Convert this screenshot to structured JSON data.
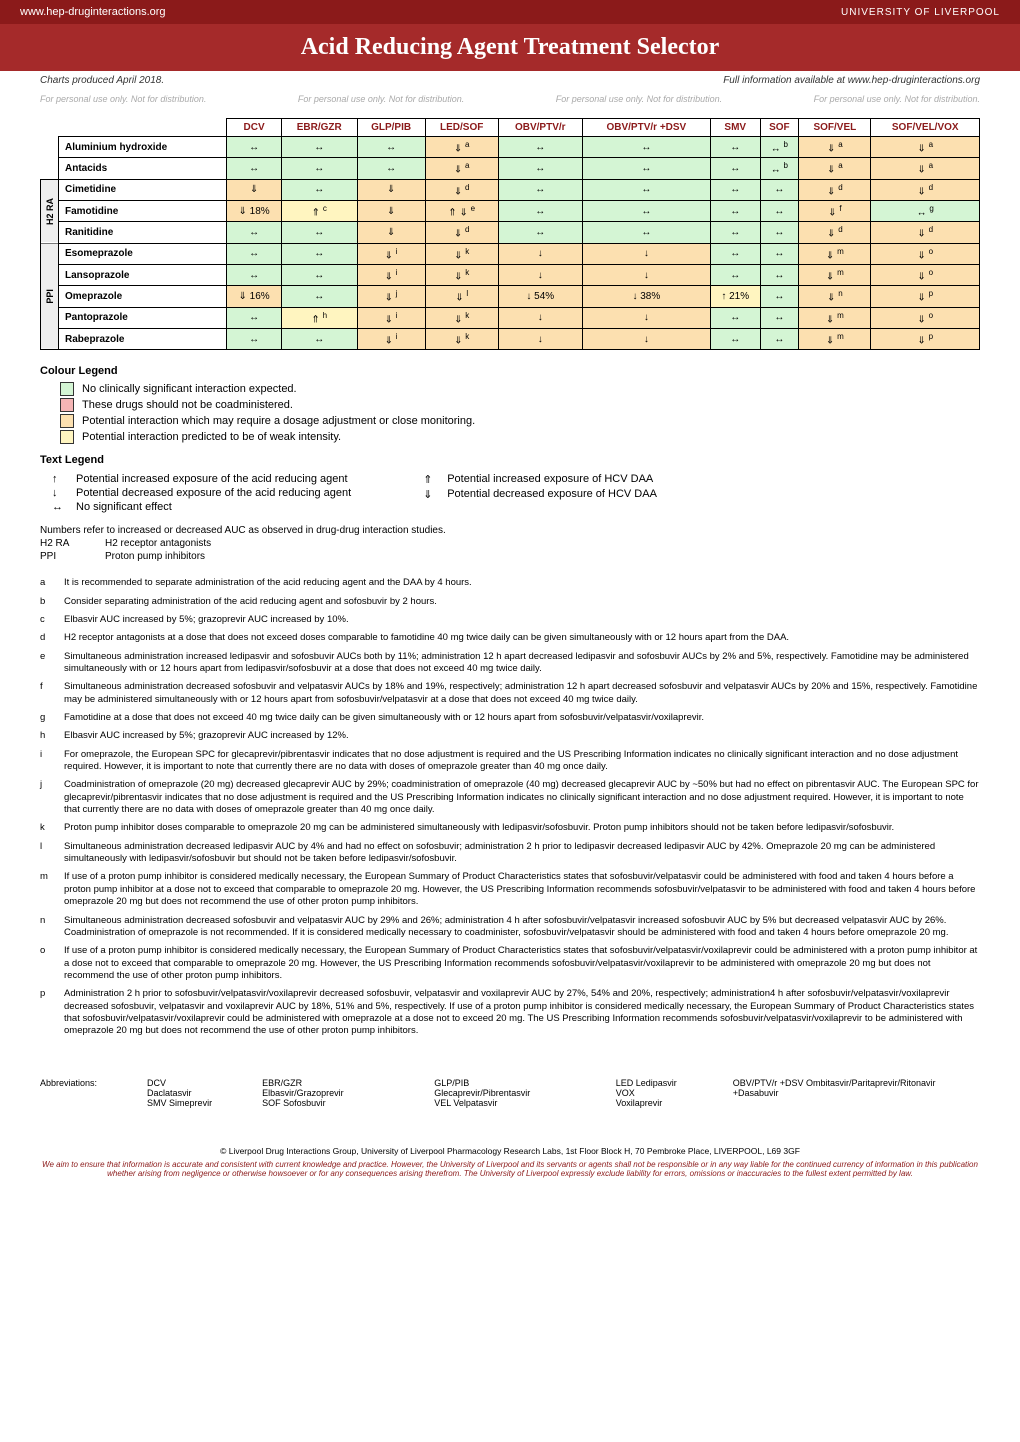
{
  "header": {
    "url": "www.hep-druginteractions.org",
    "logo": "UNIVERSITY OF LIVERPOOL"
  },
  "title": "Acid Reducing Agent Treatment Selector",
  "date_note": "Charts produced April 2018.",
  "info_note": "Full information available at www.hep-druginteractions.org",
  "watermark": "For personal use only. Not for distribution.",
  "colors": {
    "green": "#d4f5d4",
    "red": "#f5b5b5",
    "amber": "#fce0b0",
    "yellow": "#fff5c0"
  },
  "columns": [
    "DCV",
    "EBR/GZR",
    "GLP/PIB",
    "LED/SOF",
    "OBV/PTV/r",
    "OBV/PTV/r +DSV",
    "SMV",
    "SOF",
    "SOF/VEL",
    "SOF/VEL/VOX"
  ],
  "groups": [
    {
      "label": "",
      "rows": [
        {
          "name": "Aluminium hydroxide",
          "cells": [
            {
              "c": "green",
              "s": "↔"
            },
            {
              "c": "green",
              "s": "↔"
            },
            {
              "c": "green",
              "s": "↔"
            },
            {
              "c": "amber",
              "s": "⇓",
              "n": "a"
            },
            {
              "c": "green",
              "s": "↔"
            },
            {
              "c": "green",
              "s": "↔"
            },
            {
              "c": "green",
              "s": "↔"
            },
            {
              "c": "green",
              "s": "↔",
              "n": "b"
            },
            {
              "c": "amber",
              "s": "⇓",
              "n": "a"
            },
            {
              "c": "amber",
              "s": "⇓",
              "n": "a"
            }
          ]
        },
        {
          "name": "Antacids",
          "cells": [
            {
              "c": "green",
              "s": "↔"
            },
            {
              "c": "green",
              "s": "↔"
            },
            {
              "c": "green",
              "s": "↔"
            },
            {
              "c": "amber",
              "s": "⇓",
              "n": "a"
            },
            {
              "c": "green",
              "s": "↔"
            },
            {
              "c": "green",
              "s": "↔"
            },
            {
              "c": "green",
              "s": "↔"
            },
            {
              "c": "green",
              "s": "↔",
              "n": "b"
            },
            {
              "c": "amber",
              "s": "⇓",
              "n": "a"
            },
            {
              "c": "amber",
              "s": "⇓",
              "n": "a"
            }
          ]
        }
      ]
    },
    {
      "label": "H2 RA",
      "rows": [
        {
          "name": "Cimetidine",
          "cells": [
            {
              "c": "amber",
              "s": "⇓"
            },
            {
              "c": "green",
              "s": "↔"
            },
            {
              "c": "amber",
              "s": "⇓"
            },
            {
              "c": "amber",
              "s": "⇓",
              "n": "d"
            },
            {
              "c": "green",
              "s": "↔"
            },
            {
              "c": "green",
              "s": "↔"
            },
            {
              "c": "green",
              "s": "↔"
            },
            {
              "c": "green",
              "s": "↔"
            },
            {
              "c": "amber",
              "s": "⇓",
              "n": "d"
            },
            {
              "c": "amber",
              "s": "⇓",
              "n": "d"
            }
          ]
        },
        {
          "name": "Famotidine",
          "cells": [
            {
              "c": "amber",
              "s": "⇓ 18%"
            },
            {
              "c": "yellow",
              "s": "⇑",
              "n": "c"
            },
            {
              "c": "amber",
              "s": "⇓"
            },
            {
              "c": "amber",
              "s": "⇑ ⇓",
              "n": "e"
            },
            {
              "c": "green",
              "s": "↔"
            },
            {
              "c": "green",
              "s": "↔"
            },
            {
              "c": "green",
              "s": "↔"
            },
            {
              "c": "green",
              "s": "↔"
            },
            {
              "c": "amber",
              "s": "⇓",
              "n": "f"
            },
            {
              "c": "green",
              "s": "↔",
              "n": "g"
            }
          ]
        },
        {
          "name": "Ranitidine",
          "cells": [
            {
              "c": "green",
              "s": "↔"
            },
            {
              "c": "green",
              "s": "↔"
            },
            {
              "c": "amber",
              "s": "⇓"
            },
            {
              "c": "amber",
              "s": "⇓",
              "n": "d"
            },
            {
              "c": "green",
              "s": "↔"
            },
            {
              "c": "green",
              "s": "↔"
            },
            {
              "c": "green",
              "s": "↔"
            },
            {
              "c": "green",
              "s": "↔"
            },
            {
              "c": "amber",
              "s": "⇓",
              "n": "d"
            },
            {
              "c": "amber",
              "s": "⇓",
              "n": "d"
            }
          ]
        }
      ]
    },
    {
      "label": "PPI",
      "rows": [
        {
          "name": "Esomeprazole",
          "cells": [
            {
              "c": "green",
              "s": "↔"
            },
            {
              "c": "green",
              "s": "↔"
            },
            {
              "c": "amber",
              "s": "⇓",
              "n": "i"
            },
            {
              "c": "amber",
              "s": "⇓",
              "n": "k"
            },
            {
              "c": "amber",
              "s": "↓"
            },
            {
              "c": "amber",
              "s": "↓"
            },
            {
              "c": "green",
              "s": "↔"
            },
            {
              "c": "green",
              "s": "↔"
            },
            {
              "c": "amber",
              "s": "⇓",
              "n": "m"
            },
            {
              "c": "amber",
              "s": "⇓",
              "n": "o"
            }
          ]
        },
        {
          "name": "Lansoprazole",
          "cells": [
            {
              "c": "green",
              "s": "↔"
            },
            {
              "c": "green",
              "s": "↔"
            },
            {
              "c": "amber",
              "s": "⇓",
              "n": "i"
            },
            {
              "c": "amber",
              "s": "⇓",
              "n": "k"
            },
            {
              "c": "amber",
              "s": "↓"
            },
            {
              "c": "amber",
              "s": "↓"
            },
            {
              "c": "green",
              "s": "↔"
            },
            {
              "c": "green",
              "s": "↔"
            },
            {
              "c": "amber",
              "s": "⇓",
              "n": "m"
            },
            {
              "c": "amber",
              "s": "⇓",
              "n": "o"
            }
          ]
        },
        {
          "name": "Omeprazole",
          "cells": [
            {
              "c": "amber",
              "s": "⇓ 16%"
            },
            {
              "c": "green",
              "s": "↔"
            },
            {
              "c": "amber",
              "s": "⇓",
              "n": "j"
            },
            {
              "c": "amber",
              "s": "⇓",
              "n": "l"
            },
            {
              "c": "amber",
              "s": "↓ 54%"
            },
            {
              "c": "amber",
              "s": "↓ 38%"
            },
            {
              "c": "yellow",
              "s": "↑ 21%"
            },
            {
              "c": "green",
              "s": "↔"
            },
            {
              "c": "amber",
              "s": "⇓",
              "n": "n"
            },
            {
              "c": "amber",
              "s": "⇓",
              "n": "p"
            }
          ]
        },
        {
          "name": "Pantoprazole",
          "cells": [
            {
              "c": "green",
              "s": "↔"
            },
            {
              "c": "yellow",
              "s": "⇑",
              "n": "h"
            },
            {
              "c": "amber",
              "s": "⇓",
              "n": "i"
            },
            {
              "c": "amber",
              "s": "⇓",
              "n": "k"
            },
            {
              "c": "amber",
              "s": "↓"
            },
            {
              "c": "amber",
              "s": "↓"
            },
            {
              "c": "green",
              "s": "↔"
            },
            {
              "c": "green",
              "s": "↔"
            },
            {
              "c": "amber",
              "s": "⇓",
              "n": "m"
            },
            {
              "c": "amber",
              "s": "⇓",
              "n": "o"
            }
          ]
        },
        {
          "name": "Rabeprazole",
          "cells": [
            {
              "c": "green",
              "s": "↔"
            },
            {
              "c": "green",
              "s": "↔"
            },
            {
              "c": "amber",
              "s": "⇓",
              "n": "i"
            },
            {
              "c": "amber",
              "s": "⇓",
              "n": "k"
            },
            {
              "c": "amber",
              "s": "↓"
            },
            {
              "c": "amber",
              "s": "↓"
            },
            {
              "c": "green",
              "s": "↔"
            },
            {
              "c": "green",
              "s": "↔"
            },
            {
              "c": "amber",
              "s": "⇓",
              "n": "m"
            },
            {
              "c": "amber",
              "s": "⇓",
              "n": "p"
            }
          ]
        }
      ]
    }
  ],
  "colour_legend_title": "Colour Legend",
  "colour_legend": [
    {
      "c": "green",
      "t": "No clinically significant interaction expected."
    },
    {
      "c": "red",
      "t": "These drugs should not be coadministered."
    },
    {
      "c": "amber",
      "t": "Potential interaction which may require a dosage adjustment or close monitoring."
    },
    {
      "c": "yellow",
      "t": "Potential interaction predicted to be of weak intensity."
    }
  ],
  "text_legend_title": "Text Legend",
  "text_legend_left": [
    {
      "s": "↑",
      "t": "Potential increased exposure of the acid reducing agent"
    },
    {
      "s": "↓",
      "t": "Potential decreased exposure of the acid reducing agent"
    },
    {
      "s": "↔",
      "t": "No significant effect"
    }
  ],
  "text_legend_right": [
    {
      "s": "⇑",
      "t": "Potential increased exposure of HCV DAA"
    },
    {
      "s": "⇓",
      "t": "Potential decreased exposure of HCV DAA"
    }
  ],
  "numbers_note": "Numbers refer to increased or decreased AUC as observed in drug-drug interaction studies.",
  "abbr_defs": [
    {
      "k": "H2 RA",
      "v": "H2 receptor antagonists"
    },
    {
      "k": "PPI",
      "v": "Proton pump inhibitors"
    }
  ],
  "footnotes": [
    {
      "k": "a",
      "t": "It is recommended to separate administration of the acid reducing agent and the DAA by 4 hours."
    },
    {
      "k": "b",
      "t": "Consider separating administration of the acid reducing agent and sofosbuvir by 2 hours."
    },
    {
      "k": "c",
      "t": "Elbasvir AUC increased by 5%; grazoprevir AUC increased by 10%."
    },
    {
      "k": "d",
      "t": "H2 receptor antagonists at a dose that does not exceed doses comparable to famotidine 40 mg twice daily can be given simultaneously with or 12 hours apart from the DAA."
    },
    {
      "k": "e",
      "t": "Simultaneous administration increased ledipasvir and sofosbuvir AUCs both by 11%; administration 12 h apart decreased ledipasvir and sofosbuvir AUCs by 2% and 5%, respectively. Famotidine may be administered simultaneously with or 12 hours apart from ledipasvir/sofosbuvir at a dose that does not exceed 40 mg twice daily."
    },
    {
      "k": "f",
      "t": "Simultaneous administration decreased sofosbuvir and velpatasvir AUCs by 18% and 19%, respectively; administration 12 h apart decreased sofosbuvir and velpatasvir AUCs by 20% and 15%, respectively. Famotidine may be administered simultaneously with or 12 hours apart from sofosbuvir/velpatasvir at a dose that does not exceed 40 mg twice daily."
    },
    {
      "k": "g",
      "t": "Famotidine at a dose that does not exceed 40 mg twice daily can be given simultaneously with or 12 hours apart from sofosbuvir/velpatasvir/voxilaprevir."
    },
    {
      "k": "h",
      "t": "Elbasvir AUC increased by 5%; grazoprevir AUC increased by 12%."
    },
    {
      "k": "i",
      "t": "For omeprazole, the European SPC for glecaprevir/pibrentasvir indicates that no dose adjustment is required and the US Prescribing Information indicates no clinically significant interaction and no dose adjustment required. However, it is important to note that currently there are no data with doses of omeprazole greater than 40 mg once daily."
    },
    {
      "k": "j",
      "t": "Coadministration of omeprazole (20 mg) decreased glecaprevir AUC by 29%; coadministration of omeprazole (40 mg) decreased glecaprevir AUC by ~50% but had no effect on pibrentasvir AUC. The European SPC for glecaprevir/pibrentasvir indicates that no dose adjustment is required and the US Prescribing Information indicates no clinically significant interaction and no dose adjustment required. However, it is important to note that currently there are no data with doses of omeprazole greater than 40 mg once daily."
    },
    {
      "k": "k",
      "t": "Proton pump inhibitor doses comparable to omeprazole 20 mg can be administered simultaneously with ledipasvir/sofosbuvir. Proton pump inhibitors should not be taken before ledipasvir/sofosbuvir."
    },
    {
      "k": "l",
      "t": "Simultaneous administration decreased ledipasvir AUC by 4% and had no effect on sofosbuvir; administration 2 h prior to ledipasvir decreased ledipasvir AUC by 42%. Omeprazole 20 mg can be administered simultaneously with ledipasvir/sofosbuvir but should not be taken before ledipasvir/sofosbuvir."
    },
    {
      "k": "m",
      "t": "If use of a proton pump inhibitor is considered medically necessary, the European Summary of Product Characteristics states that sofosbuvir/velpatasvir could be administered with food and taken 4 hours before a proton pump inhibitor at a dose not to exceed that comparable to omeprazole 20 mg. However, the US Prescribing Information recommends sofosbuvir/velpatasvir to be administered with food and taken 4 hours before omeprazole 20 mg but does not recommend the use of other proton pump inhibitors."
    },
    {
      "k": "n",
      "t": "Simultaneous administration decreased sofosbuvir and velpatasvir AUC by 29% and 26%; administration 4 h after sofosbuvir/velpatasvir increased sofosbuvir AUC by 5% but decreased velpatasvir AUC by 26%. Coadministration of omeprazole is not recommended. If it is considered medically necessary to coadminister, sofosbuvir/velpatasvir should be administered with food and taken 4 hours before omeprazole 20 mg."
    },
    {
      "k": "o",
      "t": "If use of a proton pump inhibitor is considered medically necessary, the European Summary of Product Characteristics states that sofosbuvir/velpatasvir/voxilaprevir could be administered with a proton pump inhibitor at a dose not to exceed that comparable to omeprazole 20 mg. However, the US Prescribing Information recommends sofosbuvir/velpatasvir/voxilaprevir to be administered with omeprazole 20 mg but does not recommend the use of other proton pump inhibitors."
    },
    {
      "k": "p",
      "t": "Administration 2 h prior to sofosbuvir/velpatasvir/voxilaprevir decreased sofosbuvir, velpatasvir and voxilaprevir AUC by 27%, 54% and 20%, respectively; administration4 h after sofosbuvir/velpatasvir/voxilaprevir decreased sofosbuvir, velpatasvir and voxilaprevir AUC by 18%, 51% and 5%, respectively. If use of a proton pump inhibitor is considered medically necessary, the European Summary of Product Characteristics states that sofosbuvir/velpatasvir/voxilaprevir could be administered with omeprazole at a dose not to exceed 20 mg. The US Prescribing Information recommends sofosbuvir/velpatasvir/voxilaprevir to be administered with omeprazole 20 mg but does not recommend the use of other proton pump inhibitors."
    }
  ],
  "abbrev_label": "Abbreviations:",
  "abbreviations": [
    [
      {
        "k": "DCV",
        "v": "Daclatasvir"
      },
      {
        "k": "SMV",
        "v": "Simeprevir"
      }
    ],
    [
      {
        "k": "EBR/GZR",
        "v": "Elbasvir/Grazoprevir"
      },
      {
        "k": "SOF",
        "v": "Sofosbuvir"
      }
    ],
    [
      {
        "k": "GLP/PIB",
        "v": "Glecaprevir/Pibrentasvir"
      },
      {
        "k": "VEL",
        "v": "Velpatasvir"
      }
    ],
    [
      {
        "k": "LED",
        "v": "Ledipasvir"
      },
      {
        "k": "VOX",
        "v": "Voxilaprevir"
      }
    ],
    [
      {
        "k": "OBV/PTV/r +DSV",
        "v": "Ombitasvir/Paritaprevir/Ritonavir +Dasabuvir"
      }
    ]
  ],
  "footer": {
    "copy": "© Liverpool Drug Interactions Group, University of Liverpool Pharmacology Research Labs, 1st Floor Block H, 70 Pembroke Place, LIVERPOOL, L69 3GF",
    "disclaimer": "We aim to ensure that information is accurate and consistent with current knowledge and practice. However, the University of Liverpool and its servants or agents shall not be responsible or in any way liable for the continued currency of information in this publication whether arising from negligence or otherwise howsoever or for any consequences arising therefrom. The University of Liverpool expressly exclude liability for errors, omissions or inaccuracies to the fullest extent permitted by law."
  }
}
